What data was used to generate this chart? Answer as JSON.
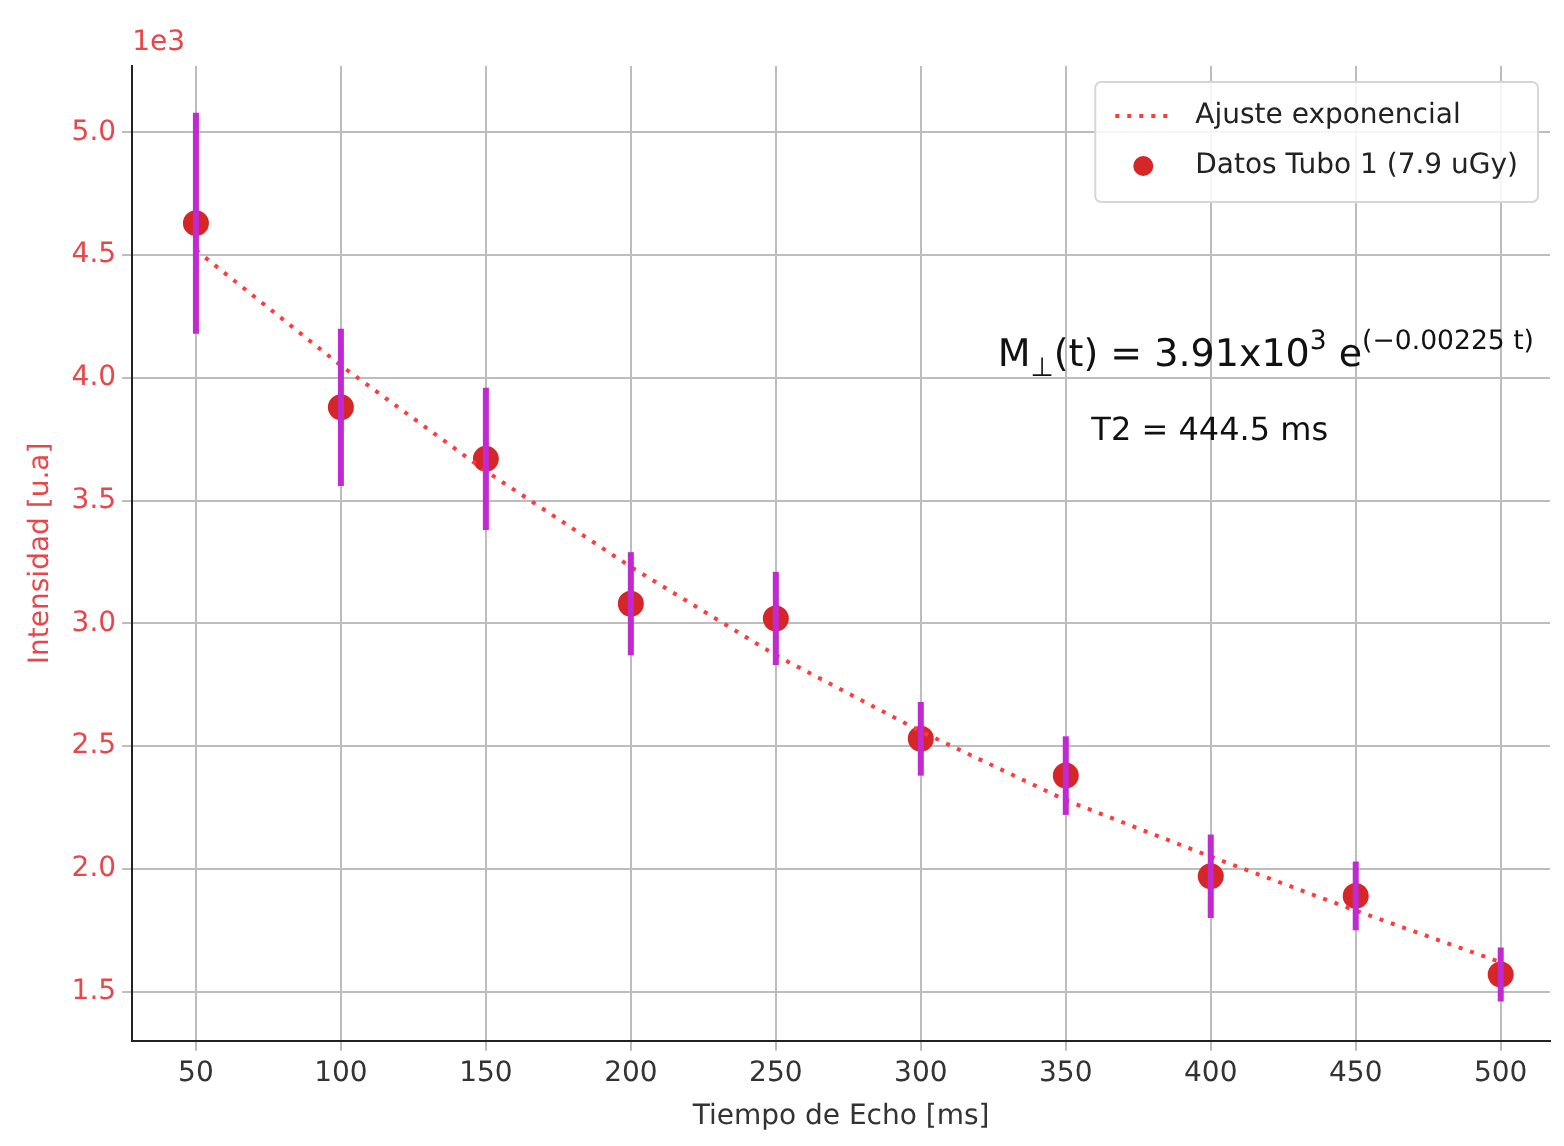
{
  "chart_data": {
    "type": "scatter",
    "xlabel": "Tiempo de Echo [ms]",
    "ylabel": "Intensidad [u.a]",
    "x": [
      50,
      100,
      150,
      200,
      250,
      300,
      350,
      400,
      450,
      500
    ],
    "series": [
      {
        "name": "Ajuste exponencial",
        "type": "line",
        "color": "#ff3b3b",
        "line_style": "dotted",
        "marker": "none",
        "values": [
          4.52,
          4.05,
          3.62,
          3.23,
          2.87,
          2.56,
          2.28,
          2.05,
          1.83,
          1.62
        ]
      },
      {
        "name": "Datos Tubo 1 (7.9 uGy)",
        "color": "#d62728",
        "marker": "circle",
        "values": [
          4.63,
          3.88,
          3.67,
          3.08,
          3.02,
          2.53,
          2.38,
          1.97,
          1.89,
          1.57
        ],
        "errors": [
          0.45,
          0.32,
          0.29,
          0.21,
          0.19,
          0.15,
          0.16,
          0.17,
          0.14,
          0.11
        ]
      }
    ],
    "xlim": [
      28,
      517
    ],
    "xticks": [
      50,
      100,
      150,
      200,
      250,
      300,
      350,
      400,
      450,
      500
    ],
    "ylim": [
      1.3,
      5.27
    ],
    "yticks": [
      {
        "value": 1.5,
        "label": "1.5"
      },
      {
        "value": 2,
        "label": "2.0"
      },
      {
        "value": 2.5,
        "label": "2.5"
      },
      {
        "value": 3,
        "label": "3.0"
      },
      {
        "value": 3.5,
        "label": "3.5"
      },
      {
        "value": 4,
        "label": "4.0"
      },
      {
        "value": 4.5,
        "label": "4.5"
      },
      {
        "value": 5,
        "label": "5.0"
      }
    ],
    "annotations": [
      "1e3",
      "M$_{⊥}$(t) = 3.91x10$^{3}$ e$^{(−0.00225 t)}$",
      "T2 = 444.5 ms"
    ],
    "grid": true,
    "legend": "top right"
  }
}
